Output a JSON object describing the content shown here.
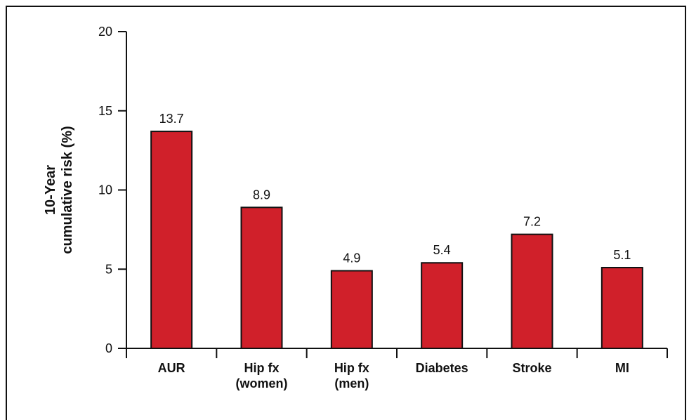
{
  "chart_data": {
    "type": "bar",
    "categories": [
      [
        "AUR"
      ],
      [
        "Hip fx",
        "(women)"
      ],
      [
        "Hip fx",
        "(men)"
      ],
      [
        "Diabetes"
      ],
      [
        "Stroke"
      ],
      [
        "MI"
      ]
    ],
    "values": [
      13.7,
      8.9,
      4.9,
      5.4,
      7.2,
      5.1
    ],
    "value_labels": [
      "13.7",
      "8.9",
      "4.9",
      "5.4",
      "7.2",
      "5.1"
    ],
    "ylabel_lines": [
      "10-Year",
      "cumulative risk (%)"
    ],
    "xlabel": "",
    "ylim": [
      0,
      20
    ],
    "yticks": [
      0,
      5,
      10,
      15,
      20
    ],
    "grid": false,
    "bar_color": "#d0202a",
    "bar_edge_color": "#111111"
  }
}
